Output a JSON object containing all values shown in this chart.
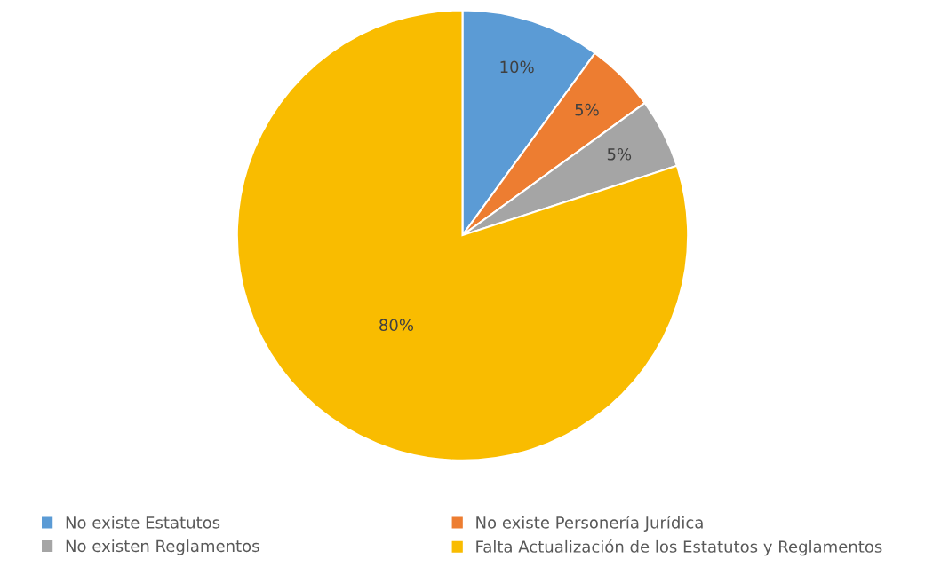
{
  "chart_data": {
    "type": "pie",
    "categories": [
      "No existe Estatutos",
      "No existe Personería Jurídica",
      "No existen Reglamentos",
      "Falta Actualización de los Estatutos y Reglamentos"
    ],
    "values": [
      10,
      5,
      5,
      80
    ],
    "colors": [
      "#5b9bd5",
      "#ed7d31",
      "#a5a5a5",
      "#f9bc00"
    ],
    "value_labels": [
      "10%",
      "5%",
      "5%",
      "80%"
    ],
    "legend": "bottom"
  }
}
